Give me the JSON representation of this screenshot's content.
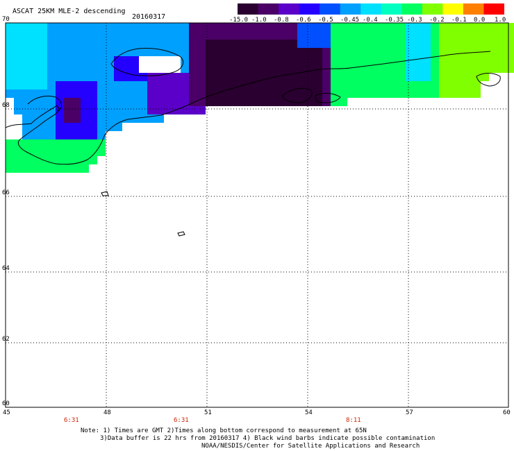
{
  "header": {
    "title": "ASCAT 25KM MLE-2 descending",
    "date": "20160317"
  },
  "colorbar": {
    "labels": [
      "-15.0",
      "-1.0",
      "-0.8",
      "-0.6",
      "-0.5",
      "-0.45",
      "-0.4",
      "-0.35",
      "-0.3",
      "-0.2",
      "-0.1",
      "0.0",
      "1.0"
    ],
    "colors": [
      "#2a0030",
      "#4a0066",
      "#5a00c8",
      "#2400ff",
      "#0050ff",
      "#00a0ff",
      "#00e0ff",
      "#00ffc0",
      "#00ff60",
      "#80ff00",
      "#ffff00",
      "#ff8000",
      "#ff0000"
    ]
  },
  "map": {
    "lat_labels": [
      "70",
      "68",
      "66",
      "64",
      "62",
      "60"
    ],
    "lon_labels": [
      "45",
      "48",
      "51",
      "54",
      "57",
      "60"
    ],
    "times": [
      "6:31",
      "6:31",
      "8:11"
    ]
  },
  "notes": {
    "line1": "Note: 1) Times are GMT 2)Times along bottom correspond to measurement at 65N",
    "line2": "3)Data buffer is 22 hrs from 20160317 4) Black wind barbs indicate possible contamination",
    "line3": "NOAA/NESDIS/Center for Satellite Applications and Research"
  }
}
